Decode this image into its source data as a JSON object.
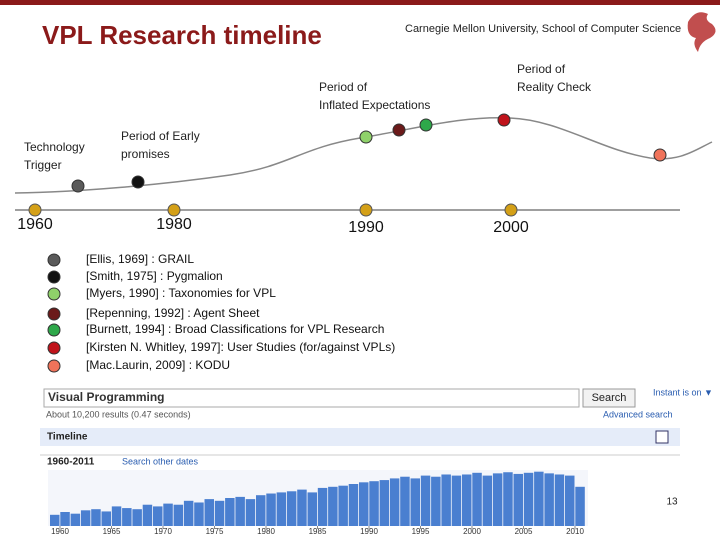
{
  "header": {
    "title": "VPL Research timeline",
    "affiliation": "Carnegie Mellon University, School of Computer Science"
  },
  "curve": {
    "phases": [
      {
        "lines": [
          "Technology",
          "Trigger"
        ]
      },
      {
        "lines": [
          "Period of Early",
          "promises"
        ]
      },
      {
        "lines": [
          "Period of",
          "Inflated Expectations"
        ]
      },
      {
        "lines": [
          "Period of",
          "Reality Check"
        ]
      }
    ],
    "years": [
      "1960",
      "1980",
      "1990",
      "2000"
    ]
  },
  "references": [
    {
      "text": "[Ellis, 1969] : GRAIL",
      "color": "#5a5a5a"
    },
    {
      "text": "[Smith, 1975] : Pygmalion",
      "color": "#111111"
    },
    {
      "text": "[Myers, 1990] : Taxonomies for VPL",
      "color": "#8fd16a"
    },
    {
      "text": "[Repenning, 1992] : Agent Sheet",
      "color": "#6b1a1a"
    },
    {
      "text": "[Burnett, 1994] : Broad Classifications for VPL Research",
      "color": "#2ea84a"
    },
    {
      "text": "[Kirsten N. Whitley, 1997]: User Studies (for/against VPLs)",
      "color": "#c0131b"
    },
    {
      "text": "[Mac.Laurin, 2009] : KODU",
      "color": "#f0735a"
    }
  ],
  "search_screenshot": {
    "query": "Visual Programming",
    "button": "Search",
    "instant": "Instant is on ▼",
    "results": "About 10,200 results (0.47 seconds)",
    "advanced": "Advanced search",
    "timeline_label": "Timeline",
    "range": "1960-2011",
    "other_dates": "Search other dates",
    "timeline": {
      "xticks": [
        1960,
        1965,
        1970,
        1975,
        1980,
        1985,
        1990,
        1995,
        2000,
        2005,
        2010
      ],
      "start": 1960,
      "values": [
        20,
        25,
        22,
        28,
        30,
        26,
        35,
        32,
        30,
        38,
        35,
        40,
        38,
        45,
        42,
        48,
        45,
        50,
        52,
        48,
        55,
        58,
        60,
        62,
        65,
        60,
        68,
        70,
        72,
        75,
        78,
        80,
        82,
        85,
        88,
        85,
        90,
        88,
        92,
        90,
        92,
        95,
        90,
        94,
        96,
        93,
        95,
        97,
        94,
        92,
        90,
        70
      ]
    }
  },
  "page_number": "13"
}
